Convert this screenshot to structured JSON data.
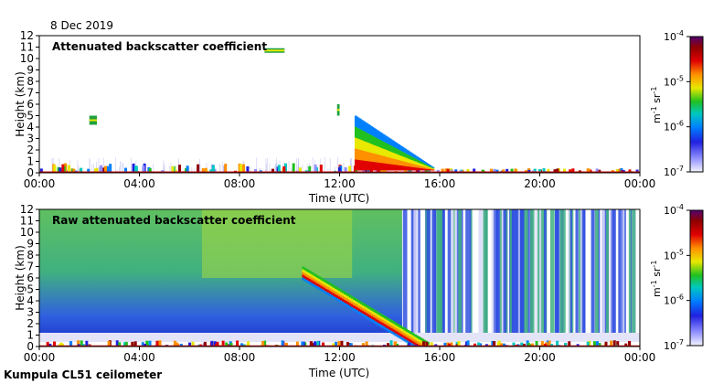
{
  "date_label": "8 Dec 2019",
  "footer_label": "Kumpula CL51 ceilometer",
  "chart_data": [
    {
      "type": "heatmap",
      "title": "Attenuated backscatter coefficient",
      "xlabel": "Time (UTC)",
      "ylabel": "Height (km)",
      "x_ticks": [
        "00:00",
        "04:00",
        "08:00",
        "12:00",
        "16:00",
        "20:00",
        "00:00"
      ],
      "y_ticks": [
        "0",
        "1",
        "2",
        "3",
        "4",
        "5",
        "6",
        "7",
        "8",
        "9",
        "10",
        "11",
        "12"
      ],
      "ylim": [
        0,
        12
      ],
      "colorbar": {
        "scale": "log",
        "ticks": [
          "10-7",
          "10-6",
          "10-5",
          "10-4"
        ],
        "range": [
          1e-07,
          0.0001
        ],
        "unit": "m-1 sr-1",
        "colors": [
          "#ffffff",
          "#7070ff",
          "#0000d0",
          "#00a0ff",
          "#00d0a0",
          "#40c000",
          "#e0e000",
          "#ff8000",
          "#e00000",
          "#800000",
          "#500070"
        ]
      },
      "features": [
        {
          "name": "boundary layer aerosol",
          "time_h": [
            0,
            24
          ],
          "height_km": [
            0,
            0.8
          ]
        },
        {
          "name": "cloud",
          "time_h": [
            2.0,
            2.3
          ],
          "height_km": [
            4.2,
            5.0
          ]
        },
        {
          "name": "cloud",
          "time_h": [
            9.0,
            9.8
          ],
          "height_km": [
            10.5,
            10.9
          ]
        },
        {
          "name": "cloud",
          "time_h": [
            11.9,
            12.0
          ],
          "height_km": [
            5.0,
            6.0
          ]
        },
        {
          "name": "descending precipitation",
          "time_h": [
            12.6,
            15.7
          ],
          "height_km": [
            0.2,
            5.0
          ]
        }
      ]
    },
    {
      "type": "heatmap",
      "title": "Raw attenuated backscatter coefficient",
      "xlabel": "Time (UTC)",
      "ylabel": "Height (km)",
      "x_ticks": [
        "00:00",
        "04:00",
        "08:00",
        "12:00",
        "16:00",
        "20:00",
        "00:00"
      ],
      "y_ticks": [
        "0",
        "1",
        "2",
        "3",
        "4",
        "5",
        "6",
        "7",
        "8",
        "9",
        "10",
        "11",
        "12"
      ],
      "ylim": [
        0,
        12
      ],
      "colorbar": {
        "scale": "log",
        "ticks": [
          "10-7",
          "10-6",
          "10-5",
          "10-4"
        ],
        "range": [
          1e-07,
          0.0001
        ],
        "unit": "m-1 sr-1"
      },
      "features": [
        {
          "name": "daytime noise",
          "time_h": [
            0,
            14.5
          ],
          "height_km": [
            1,
            12
          ]
        },
        {
          "name": "descending precipitation",
          "time_h": [
            10.5,
            15.5
          ],
          "height_km": [
            0.3,
            7.0
          ]
        },
        {
          "name": "noisy columns",
          "time_h": [
            14.5,
            24
          ],
          "height_km": [
            1,
            12
          ]
        },
        {
          "name": "boundary layer aerosol",
          "time_h": [
            0,
            24
          ],
          "height_km": [
            0,
            0.6
          ]
        }
      ]
    }
  ]
}
